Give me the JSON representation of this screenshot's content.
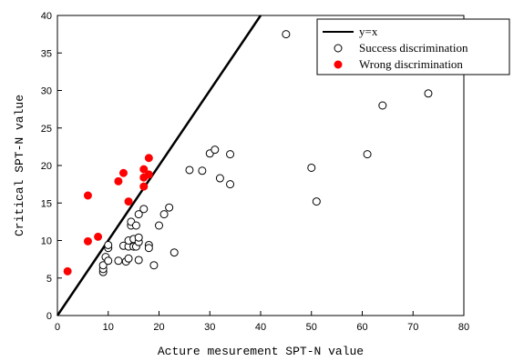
{
  "chart_data": {
    "type": "scatter",
    "xlabel": "Acture mesurement SPT-N value",
    "ylabel": "Critical SPT-N value",
    "xlim": [
      0,
      80
    ],
    "ylim": [
      0,
      40
    ],
    "xticks": [
      0,
      10,
      20,
      30,
      40,
      50,
      60,
      70,
      80
    ],
    "yticks": [
      0,
      5,
      10,
      15,
      20,
      25,
      30,
      35,
      40
    ],
    "grid": false,
    "legend_position": "top-right",
    "line": {
      "name": "y=x",
      "points": [
        [
          0,
          0
        ],
        [
          40,
          40
        ]
      ],
      "color": "#000000"
    },
    "series": [
      {
        "name": "Success discrimination",
        "marker": "open-circle",
        "color": "#000000",
        "points": [
          [
            9,
            5.8
          ],
          [
            9,
            6.2
          ],
          [
            9,
            6.7
          ],
          [
            9.5,
            7.8
          ],
          [
            10,
            7.3
          ],
          [
            10,
            9
          ],
          [
            10,
            9.4
          ],
          [
            12,
            7.3
          ],
          [
            13,
            9.3
          ],
          [
            13.5,
            7.2
          ],
          [
            14,
            7.6
          ],
          [
            14,
            9.2
          ],
          [
            14,
            10
          ],
          [
            14.5,
            12
          ],
          [
            14.5,
            12.5
          ],
          [
            15,
            9.2
          ],
          [
            15,
            10.2
          ],
          [
            15.5,
            9.2
          ],
          [
            15.5,
            12
          ],
          [
            16,
            7.4
          ],
          [
            16,
            9.8
          ],
          [
            16,
            10.4
          ],
          [
            16,
            13.5
          ],
          [
            17,
            14.2
          ],
          [
            18,
            9.4
          ],
          [
            18,
            9
          ],
          [
            19,
            6.7
          ],
          [
            20,
            12
          ],
          [
            21,
            13.5
          ],
          [
            22,
            14.4
          ],
          [
            23,
            8.4
          ],
          [
            26,
            19.4
          ],
          [
            28.5,
            19.3
          ],
          [
            30,
            21.6
          ],
          [
            31,
            22.1
          ],
          [
            32,
            18.3
          ],
          [
            34,
            21.5
          ],
          [
            34,
            17.5
          ],
          [
            45,
            37.5
          ],
          [
            50,
            19.7
          ],
          [
            51,
            15.2
          ],
          [
            61,
            21.5
          ],
          [
            64,
            28
          ],
          [
            73,
            29.6
          ]
        ]
      },
      {
        "name": "Wrong discrimination",
        "marker": "filled-circle",
        "color": "#ff0000",
        "points": [
          [
            2,
            5.9
          ],
          [
            6,
            9.9
          ],
          [
            6,
            16
          ],
          [
            8,
            10.5
          ],
          [
            12,
            17.9
          ],
          [
            13,
            19
          ],
          [
            14,
            15.2
          ],
          [
            17,
            17.2
          ],
          [
            17,
            18.4
          ],
          [
            17,
            19.5
          ],
          [
            18,
            18.8
          ],
          [
            18,
            21
          ]
        ]
      }
    ]
  }
}
